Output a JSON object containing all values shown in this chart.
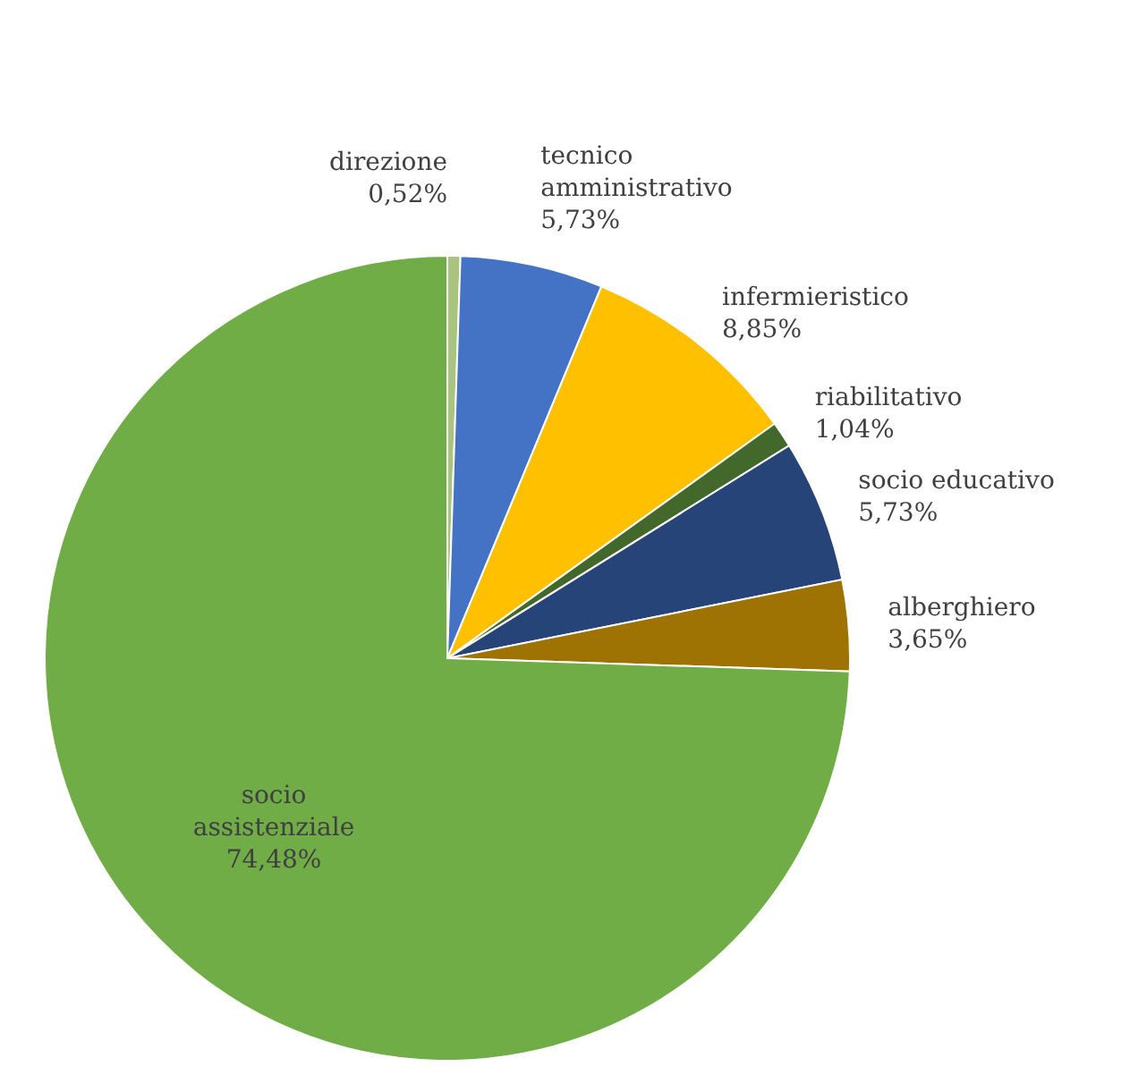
{
  "chart_data": {
    "type": "pie",
    "categories": [
      "direzione",
      "tecnico amministrativo",
      "infermieristico",
      "riabilitativo",
      "socio educativo",
      "alberghiero",
      "socio assistenziale"
    ],
    "values": [
      0.52,
      5.73,
      8.85,
      1.04,
      5.73,
      3.65,
      74.48
    ],
    "value_labels": [
      "0,52%",
      "5,73%",
      "8,85%",
      "1,04%",
      "5,73%",
      "3,65%",
      "74,48%"
    ],
    "colors": [
      "#a9c47f",
      "#4472c4",
      "#ffc000",
      "#43682b",
      "#264478",
      "#9e7203",
      "#70ad47"
    ]
  }
}
